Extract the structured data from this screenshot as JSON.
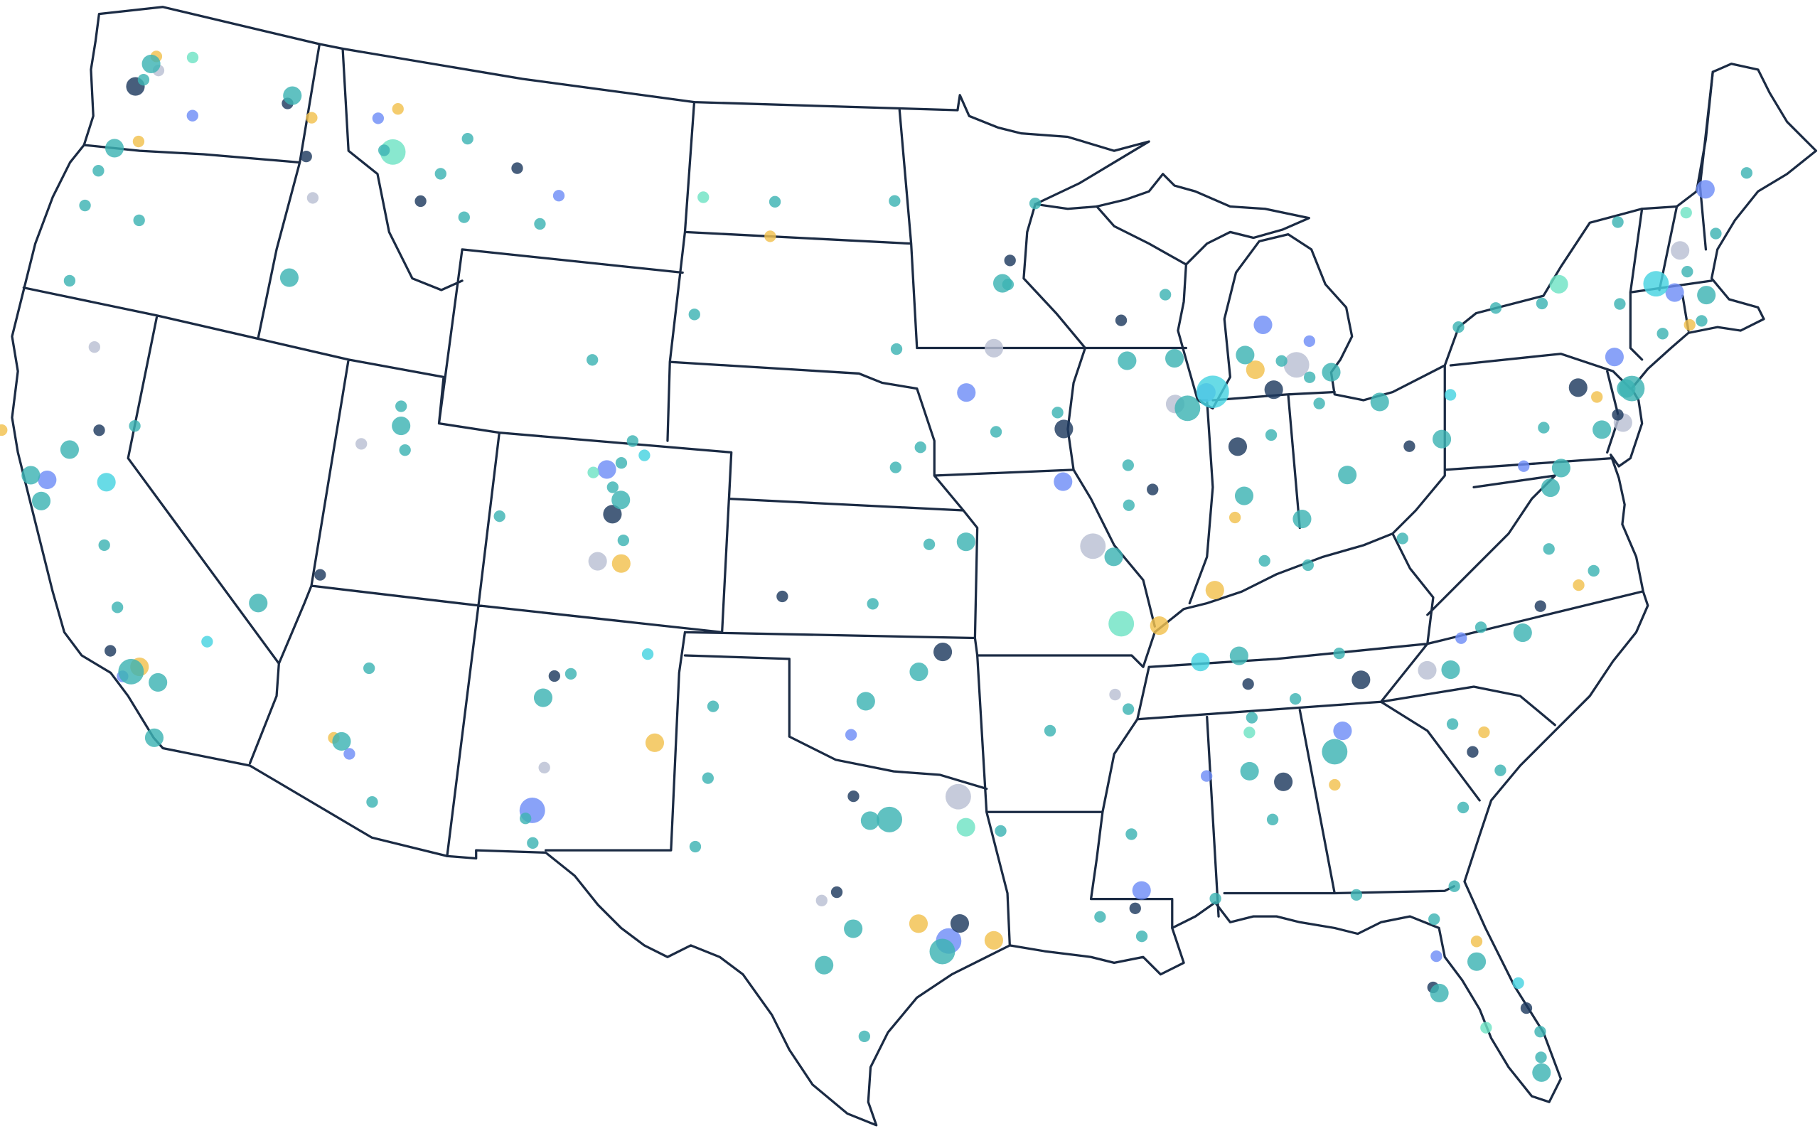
{
  "map": {
    "type": "bubble-map",
    "series": [
      {
        "color": "#b9bfd3",
        "points": [
          [
            -122.0,
            47.5,
            1
          ],
          [
            -116.0,
            45.5,
            1
          ],
          [
            -121.6,
            41.0,
            1
          ],
          [
            -113.0,
            40.2,
            1
          ],
          [
            -105.5,
            38.3,
            2
          ],
          [
            -90.8,
            38.9,
            3
          ],
          [
            -93.6,
            43.5,
            2
          ],
          [
            -88.0,
            42.0,
            2
          ],
          [
            -84.1,
            42.6,
            3
          ],
          [
            -90.4,
            35.5,
            1
          ],
          [
            -94.9,
            33.3,
            3
          ],
          [
            -81.5,
            35.3,
            2
          ],
          [
            -74.5,
            40.0,
            2
          ],
          [
            -71.5,
            43.5,
            2
          ],
          [
            -106.4,
            33.5,
            1
          ],
          [
            -98.6,
            30.9,
            1
          ]
        ]
      },
      {
        "color": "#f2c14e",
        "points": [
          [
            -122.2,
            47.8,
            1
          ],
          [
            -122.0,
            45.8,
            1
          ],
          [
            -116.6,
            47.3,
            1
          ],
          [
            -113.8,
            47.9,
            1
          ],
          [
            -123.6,
            38.6,
            1
          ],
          [
            -118.0,
            34.2,
            2
          ],
          [
            -112.3,
            33.5,
            1
          ],
          [
            -104.8,
            38.3,
            2
          ],
          [
            -103.4,
            34.3,
            2
          ],
          [
            -96.0,
            30.4,
            2
          ],
          [
            -94.0,
            30.0,
            2
          ],
          [
            -89.0,
            37.0,
            2
          ],
          [
            -85.4,
            42.6,
            2
          ],
          [
            -86.5,
            39.3,
            1
          ],
          [
            -87.3,
            37.7,
            2
          ],
          [
            -84.5,
            33.0,
            1
          ],
          [
            -81.3,
            29.0,
            1
          ],
          [
            -76.8,
            36.6,
            1
          ],
          [
            -75.1,
            40.7,
            1
          ],
          [
            -71.8,
            41.8,
            1
          ],
          [
            -80.2,
            33.7,
            1
          ],
          [
            -100.9,
            46.0,
            1
          ]
        ]
      },
      {
        "color": "#6f8ef7",
        "points": [
          [
            -120.5,
            46.7,
            1
          ],
          [
            -114.4,
            47.6,
            1
          ],
          [
            -108.0,
            46.5,
            1
          ],
          [
            -121.9,
            37.8,
            2
          ],
          [
            -118.4,
            33.9,
            1
          ],
          [
            -111.8,
            33.2,
            1
          ],
          [
            -106.6,
            32.5,
            3
          ],
          [
            -105.5,
            40.4,
            2
          ],
          [
            -94.5,
            42.5,
            2
          ],
          [
            -91.6,
            40.4,
            2
          ],
          [
            -87.0,
            42.2,
            2
          ],
          [
            -85.0,
            43.6,
            2
          ],
          [
            -83.6,
            43.1,
            1
          ],
          [
            -95.2,
            30.0,
            3
          ],
          [
            -97.9,
            34.7,
            1
          ],
          [
            -88.0,
            33.5,
            1
          ],
          [
            -84.1,
            34.2,
            2
          ],
          [
            -80.4,
            35.9,
            1
          ],
          [
            -77.7,
            39.5,
            1
          ],
          [
            -74.3,
            41.5,
            2
          ],
          [
            -72.0,
            42.6,
            2
          ],
          [
            -70.2,
            44.7,
            2
          ],
          [
            -82.4,
            28.8,
            1
          ],
          [
            -90.0,
            31.0,
            2
          ]
        ]
      },
      {
        "color": "#1f3a5f",
        "points": [
          [
            -122.6,
            47.0,
            2
          ],
          [
            -117.5,
            47.5,
            1
          ],
          [
            -116.5,
            46.4,
            1
          ],
          [
            -112.5,
            45.9,
            1
          ],
          [
            -109.5,
            47.0,
            1
          ],
          [
            -120.8,
            39.2,
            1
          ],
          [
            -118.9,
            34.4,
            1
          ],
          [
            -113.5,
            37.1,
            1
          ],
          [
            -105.2,
            39.4,
            2
          ],
          [
            -106.4,
            35.6,
            1
          ],
          [
            -95.3,
            36.6,
            2
          ],
          [
            -97.8,
            33.3,
            1
          ],
          [
            -98.2,
            31.1,
            1
          ],
          [
            -94.9,
            30.4,
            2
          ],
          [
            -91.5,
            41.6,
            2
          ],
          [
            -88.9,
            40.1,
            1
          ],
          [
            -86.2,
            40.9,
            2
          ],
          [
            -84.9,
            42.1,
            2
          ],
          [
            -81.0,
            40.4,
            1
          ],
          [
            -86.6,
            35.5,
            1
          ],
          [
            -90.2,
            30.6,
            1
          ],
          [
            -85.9,
            33.2,
            2
          ],
          [
            -83.4,
            35.3,
            2
          ],
          [
            -80.6,
            33.3,
            1
          ],
          [
            -78.0,
            36.3,
            1
          ],
          [
            -75.6,
            41.0,
            2
          ],
          [
            -74.6,
            40.2,
            1
          ],
          [
            -82.6,
            28.1,
            1
          ],
          [
            -80.3,
            27.3,
            1
          ],
          [
            -89.5,
            44.0,
            1
          ],
          [
            -93.0,
            45.5,
            1
          ],
          [
            -100.0,
            37.8,
            1
          ]
        ]
      },
      {
        "color": "#6fe3c4",
        "points": [
          [
            -113.7,
            46.9,
            3
          ],
          [
            -121.0,
            48.0,
            1
          ],
          [
            -103.2,
            46.8,
            1
          ],
          [
            -105.9,
            40.3,
            1
          ],
          [
            -90.1,
            37.1,
            3
          ],
          [
            -94.7,
            32.6,
            2
          ],
          [
            -86.7,
            34.4,
            1
          ],
          [
            -81.4,
            27.0,
            1
          ],
          [
            -75.5,
            43.4,
            2
          ],
          [
            -71.0,
            44.3,
            1
          ]
        ]
      },
      {
        "color": "#47d3e0",
        "points": [
          [
            -120.2,
            38.1,
            2
          ],
          [
            -86.8,
            42.2,
            4
          ],
          [
            -103.8,
            36.3,
            1
          ],
          [
            -116.3,
            35.1,
            1
          ],
          [
            -104.4,
            40.8,
            1
          ],
          [
            -87.9,
            36.1,
            2
          ],
          [
            -72.5,
            42.9,
            3
          ],
          [
            -79.5,
            41.4,
            1
          ],
          [
            -80.4,
            27.9,
            1
          ]
        ]
      },
      {
        "color": "#3db3b3",
        "points": [
          [
            -122.3,
            47.6,
            2
          ],
          [
            -122.4,
            47.2,
            1
          ],
          [
            -117.4,
            47.7,
            2
          ],
          [
            -122.7,
            45.5,
            2
          ],
          [
            -123,
            44.9,
            1
          ],
          [
            -123.1,
            44.05,
            1
          ],
          [
            -122.9,
            42.3,
            1
          ],
          [
            -121.3,
            44.06,
            1
          ],
          [
            -116.2,
            43.6,
            2
          ],
          [
            -114,
            46.9,
            1
          ],
          [
            -112,
            46.6,
            1
          ],
          [
            -108.5,
            45.8,
            1
          ],
          [
            -111.3,
            47.5,
            1
          ],
          [
            -111,
            45.7,
            1
          ],
          [
            -96.8,
            46.9,
            1
          ],
          [
            -100.8,
            46.8,
            1
          ],
          [
            -96.7,
            43.5,
            1
          ],
          [
            -103.2,
            44.1,
            1
          ],
          [
            -106.3,
            42.85,
            1
          ],
          [
            -104.8,
            41.1,
            1
          ],
          [
            -111.9,
            40.76,
            2
          ],
          [
            -111.66,
            40.23,
            1
          ],
          [
            -112,
            41.2,
            1
          ],
          [
            -115.1,
            36.2,
            2
          ],
          [
            -119.8,
            39.5,
            1
          ],
          [
            -121.5,
            38.6,
            2
          ],
          [
            -122.4,
            37.8,
            2
          ],
          [
            -121.9,
            37.3,
            2
          ],
          [
            -119.8,
            36.7,
            1
          ],
          [
            -119,
            35.4,
            1
          ],
          [
            -118.2,
            34.05,
            3
          ],
          [
            -117.4,
            33.95,
            2
          ],
          [
            -117.16,
            32.7,
            2
          ],
          [
            -112.07,
            33.45,
            2
          ],
          [
            -110.97,
            32.2,
            1
          ],
          [
            -111.65,
            35.2,
            1
          ],
          [
            -106.65,
            35.08,
            2
          ],
          [
            -105.94,
            35.69,
            1
          ],
          [
            -106.76,
            32.3,
            1
          ],
          [
            -104.99,
            39.74,
            2
          ],
          [
            -104.8,
            38.83,
            1
          ],
          [
            -105.27,
            40.01,
            1
          ],
          [
            -105.08,
            40.58,
            1
          ],
          [
            -108.55,
            39.06,
            1
          ],
          [
            -95.94,
            41.26,
            1
          ],
          [
            -96.7,
            40.8,
            1
          ],
          [
            -94.58,
            39.1,
            2
          ],
          [
            -97.34,
            37.69,
            1
          ],
          [
            -95.68,
            39.05,
            1
          ],
          [
            -97.5,
            35.47,
            2
          ],
          [
            -95.99,
            36.15,
            2
          ],
          [
            -96.8,
            32.78,
            3
          ],
          [
            -97.33,
            32.75,
            2
          ],
          [
            -97.74,
            30.27,
            2
          ],
          [
            -98.49,
            29.42,
            2
          ],
          [
            -95.37,
            29.76,
            3
          ],
          [
            -106.49,
            31.76,
            1
          ],
          [
            -101.85,
            33.58,
            1
          ],
          [
            -101.83,
            35.22,
            1
          ],
          [
            -97.4,
            27.8,
            1
          ],
          [
            -102.08,
            32,
            1
          ],
          [
            -93.27,
            44.98,
            2
          ],
          [
            -93.09,
            44.95,
            1
          ],
          [
            -92.1,
            46.79,
            1
          ],
          [
            -93.6,
            41.59,
            1
          ],
          [
            -91.67,
            41.98,
            1
          ],
          [
            -89.4,
            43.07,
            2
          ],
          [
            -87.9,
            43.04,
            2
          ],
          [
            -88.02,
            44.51,
            1
          ],
          [
            -87.63,
            41.88,
            3
          ],
          [
            -89.65,
            39.78,
            1
          ],
          [
            -89.59,
            40.69,
            1
          ],
          [
            -90.2,
            38.63,
            2
          ],
          [
            -86.16,
            39.77,
            2
          ],
          [
            -85.14,
            41.08,
            1
          ],
          [
            -83.05,
            42.33,
            2
          ],
          [
            -85.67,
            42.96,
            2
          ],
          [
            -84.55,
            42.73,
            1
          ],
          [
            -83.74,
            42.28,
            1
          ],
          [
            -82.99,
            39.96,
            2
          ],
          [
            -81.69,
            41.5,
            2
          ],
          [
            -84.51,
            39.1,
            2
          ],
          [
            -83.55,
            41.66,
            1
          ],
          [
            -85.76,
            38.25,
            1
          ],
          [
            -84.5,
            38.04,
            1
          ],
          [
            -86.78,
            36.16,
            2
          ],
          [
            -90.05,
            35.15,
            1
          ],
          [
            -83.92,
            35.96,
            1
          ],
          [
            -85.31,
            35.05,
            1
          ],
          [
            -92.29,
            34.75,
            1
          ],
          [
            -90.18,
            32.3,
            1
          ],
          [
            -90.07,
            29.95,
            1
          ],
          [
            -91.15,
            30.45,
            1
          ],
          [
            -93.75,
            32.5,
            1
          ],
          [
            -86.8,
            33.52,
            2
          ],
          [
            -86.3,
            32.37,
            1
          ],
          [
            -88.04,
            30.69,
            1
          ],
          [
            -86.59,
            34.73,
            1
          ],
          [
            -84.39,
            33.75,
            3
          ],
          [
            -81.1,
            32.08,
            1
          ],
          [
            -81.66,
            30.33,
            1
          ],
          [
            -84.28,
            30.44,
            1
          ],
          [
            -81.38,
            28.54,
            2
          ],
          [
            -82.46,
            27.95,
            2
          ],
          [
            -80.19,
            25.77,
            2
          ],
          [
            -80.14,
            26.12,
            1
          ],
          [
            -80.05,
            26.71,
            1
          ],
          [
            -82.32,
            29.65,
            1
          ],
          [
            -79.93,
            32.78,
            1
          ],
          [
            -81.03,
            34,
            1
          ],
          [
            -80.84,
            35.23,
            2
          ],
          [
            -78.64,
            35.78,
            2
          ],
          [
            -79.79,
            36.07,
            1
          ],
          [
            -77.44,
            37.54,
            1
          ],
          [
            -76.29,
            36.85,
            1
          ],
          [
            -77.04,
            38.9,
            2
          ],
          [
            -76.61,
            39.29,
            2
          ],
          [
            -75.17,
            39.95,
            2
          ],
          [
            -79.99,
            40.44,
            2
          ],
          [
            -76.88,
            40.27,
            1
          ],
          [
            -74,
            40.71,
            3
          ],
          [
            -74.17,
            40.74,
            2
          ],
          [
            -73.76,
            42.65,
            1
          ],
          [
            -78.88,
            42.89,
            1
          ],
          [
            -77.61,
            43.16,
            1
          ],
          [
            -76.15,
            43.05,
            1
          ],
          [
            -71.06,
            42.36,
            2
          ],
          [
            -71.41,
            41.82,
            1
          ],
          [
            -72.68,
            41.76,
            1
          ],
          [
            -70.26,
            43.66,
            1
          ],
          [
            -73.21,
            44.48,
            1
          ],
          [
            -71.45,
            42.99,
            1
          ],
          [
            -68.77,
            44.8,
            1
          ],
          [
            -81.63,
            38.35,
            1
          ]
        ]
      }
    ]
  }
}
